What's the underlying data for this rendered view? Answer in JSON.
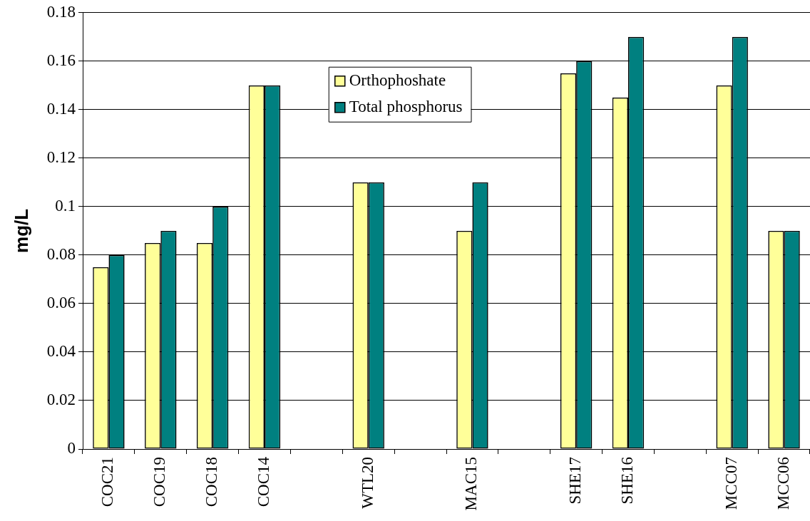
{
  "chart_data": {
    "type": "bar",
    "ylabel": "mg/L",
    "categories": [
      "COC21",
      "COC19",
      "COC18",
      "COC14",
      null,
      "WTL20",
      null,
      "MAC15",
      null,
      "SHE17",
      "SHE16",
      null,
      "MCC07",
      "MCC06"
    ],
    "series": [
      {
        "name": "Orthophoshate",
        "color": "#ffff99",
        "values": [
          0.075,
          0.085,
          0.085,
          0.15,
          null,
          0.11,
          null,
          0.09,
          null,
          0.155,
          0.145,
          null,
          0.15,
          0.09
        ]
      },
      {
        "name": "Total phosphorus",
        "color": "#008080",
        "values": [
          0.08,
          0.09,
          0.1,
          0.15,
          null,
          0.11,
          null,
          0.11,
          null,
          0.16,
          0.17,
          null,
          0.17,
          0.09
        ]
      }
    ],
    "ylim": [
      0,
      0.18
    ],
    "yticks": [
      0,
      0.02,
      0.04,
      0.06,
      0.08,
      0.1,
      0.12,
      0.14,
      0.16,
      0.18
    ],
    "grid": "y",
    "legend": "top"
  }
}
